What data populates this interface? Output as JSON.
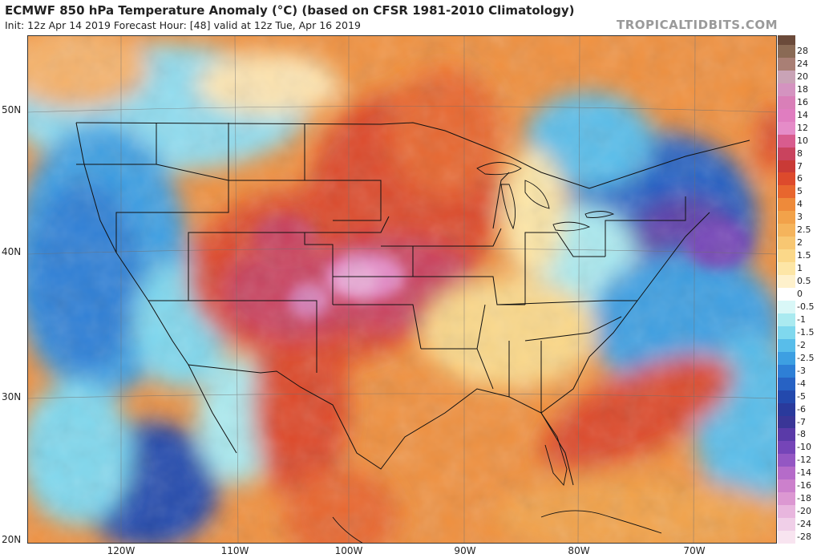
{
  "header": {
    "title": "ECMWF 850 hPa Temperature Anomaly (°C) (based on CFSR 1981-2010 Climatology)",
    "subtitle": "Init: 12z Apr 14 2019   Forecast Hour: [48]   valid at 12z Tue, Apr 16 2019",
    "brand": "TROPICALTIDBITS.COM"
  },
  "axes": {
    "lat_labels": [
      "50N",
      "40N",
      "30N",
      "20N"
    ],
    "lon_labels": [
      "120W",
      "110W",
      "100W",
      "90W",
      "80W",
      "70W"
    ]
  },
  "colorbar": {
    "levels": [
      "28",
      "24",
      "20",
      "18",
      "16",
      "14",
      "12",
      "10",
      "8",
      "7",
      "6",
      "5",
      "4",
      "3",
      "2.5",
      "2",
      "1.5",
      "1",
      "0.5",
      "0",
      "-0.5",
      "-1",
      "-1.5",
      "-2",
      "-2.5",
      "-3",
      "-4",
      "-5",
      "-6",
      "-7",
      "-8",
      "-10",
      "-12",
      "-14",
      "-16",
      "-18",
      "-20",
      "-24",
      "-28"
    ],
    "colors": [
      "#8a6a55",
      "#a97f75",
      "#c9a3b6",
      "#d493c0",
      "#d97fb8",
      "#e07dc0",
      "#e58cc8",
      "#d85c8e",
      "#c9435e",
      "#c93a36",
      "#dd4a2c",
      "#e8662e",
      "#ee8a3a",
      "#f2a24a",
      "#f5b45c",
      "#f8c772",
      "#fbd889",
      "#fde6a6",
      "#fef1cc",
      "#ffffff",
      "#d9f7f7",
      "#aaeaf0",
      "#7fd8ee",
      "#58bdea",
      "#3d9fe2",
      "#2e7fd6",
      "#2762c4",
      "#2349ad",
      "#2a3a9c",
      "#3a3697",
      "#5a3aa8",
      "#7545b8",
      "#9457c3",
      "#b56bc9",
      "#cc80cc",
      "#dc98d2",
      "#e8b6de",
      "#f0cfe8",
      "#f8e4f0"
    ],
    "top_tick_color": "#6b4a3a"
  }
}
